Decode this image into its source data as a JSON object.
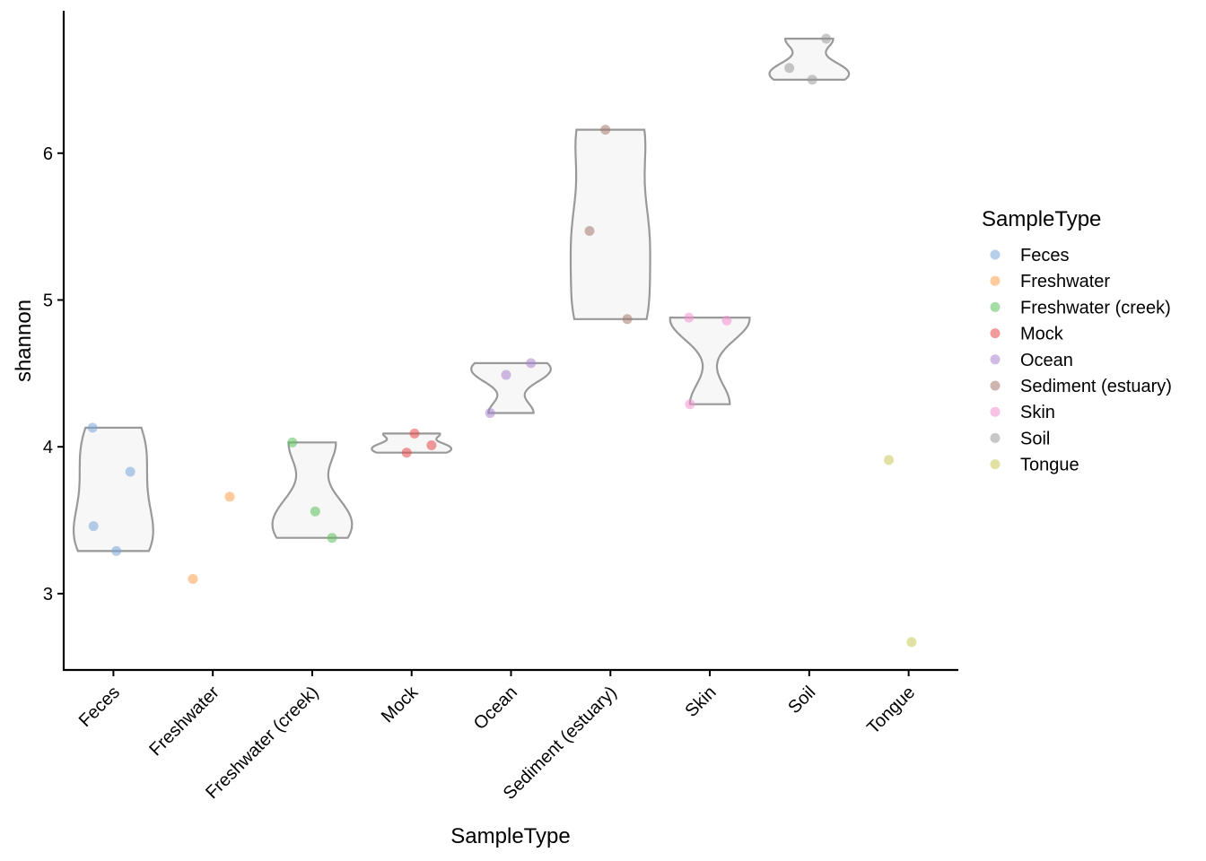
{
  "chart_data": {
    "type": "violin",
    "xlabel": "SampleType",
    "ylabel": "shannon",
    "ylim": [
      2.48,
      6.97
    ],
    "yticks": [
      3,
      4,
      5,
      6
    ],
    "categories": [
      "Feces",
      "Freshwater",
      "Freshwater (creek)",
      "Mock",
      "Ocean",
      "Sediment (estuary)",
      "Skin",
      "Soil",
      "Tongue"
    ],
    "colors": {
      "Feces": "#7aa6d8",
      "Freshwater": "#ff9e4a",
      "Freshwater (creek)": "#5cbf5c",
      "Mock": "#e8474a",
      "Ocean": "#a984cf",
      "Sediment (estuary)": "#a8786e",
      "Skin": "#f291cf",
      "Soil": "#9a9a9a",
      "Tongue": "#c8c85a"
    },
    "series": [
      {
        "name": "Feces",
        "values": [
          4.13,
          3.83,
          3.46,
          3.29
        ],
        "violin": true
      },
      {
        "name": "Freshwater",
        "values": [
          3.66,
          3.1
        ],
        "violin": false
      },
      {
        "name": "Freshwater (creek)",
        "values": [
          4.03,
          3.56,
          3.38
        ],
        "violin": true
      },
      {
        "name": "Mock",
        "values": [
          4.09,
          4.01,
          3.96
        ],
        "violin": true
      },
      {
        "name": "Ocean",
        "values": [
          4.57,
          4.49,
          4.23
        ],
        "violin": true
      },
      {
        "name": "Sediment (estuary)",
        "values": [
          6.16,
          5.47,
          4.87
        ],
        "violin": true
      },
      {
        "name": "Skin",
        "values": [
          4.88,
          4.86,
          4.29
        ],
        "violin": true
      },
      {
        "name": "Soil",
        "values": [
          6.78,
          6.58,
          6.5
        ],
        "violin": true
      },
      {
        "name": "Tongue",
        "values": [
          3.91,
          2.67
        ],
        "violin": false
      }
    ],
    "legend": {
      "title": "SampleType",
      "placement": "right",
      "entries": [
        "Feces",
        "Freshwater",
        "Freshwater (creek)",
        "Mock",
        "Ocean",
        "Sediment (estuary)",
        "Skin",
        "Soil",
        "Tongue"
      ]
    }
  }
}
